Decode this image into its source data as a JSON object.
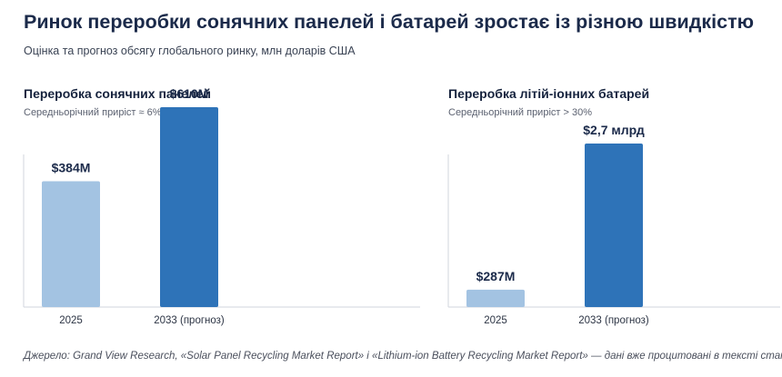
{
  "header": {
    "title": "Ринок переробки сонячних панелей і батарей зростає із різною швидкістю",
    "subtitle": "Оцінка та прогноз обсягу глобального ринку, млн доларів США"
  },
  "colors": {
    "bar_light": "#a3c3e2",
    "bar_dark": "#2e73b8",
    "axis": "#d2d6dd",
    "label": "#1b2a4a"
  },
  "chart_data": [
    {
      "type": "bar",
      "title": "Переробка сонячних панелей",
      "subtitle": "Середньорічний приріст ≈ 6%",
      "categories": [
        "2025",
        "2033 (прогноз)"
      ],
      "values": [
        384,
        610
      ],
      "data_labels": [
        "$384M",
        "$610M"
      ],
      "ylim": [
        0,
        750
      ],
      "grid": false
    },
    {
      "type": "bar",
      "title": "Переробка літій-іонних батарей",
      "subtitle": "Середньорічний приріст > 30%",
      "categories": [
        "2025",
        "2033 (прогноз)"
      ],
      "values": [
        287,
        2700
      ],
      "data_labels": [
        "$287M",
        "$2,7 млрд"
      ],
      "ylim": [
        0,
        3000
      ],
      "grid": false
    }
  ],
  "footer": {
    "source": "Джерело: Grand View Research, «Solar Panel Recycling Market Report» і «Lithium-ion Battery Recycling Market Report» — дані вже процитовані в тексті статті"
  }
}
